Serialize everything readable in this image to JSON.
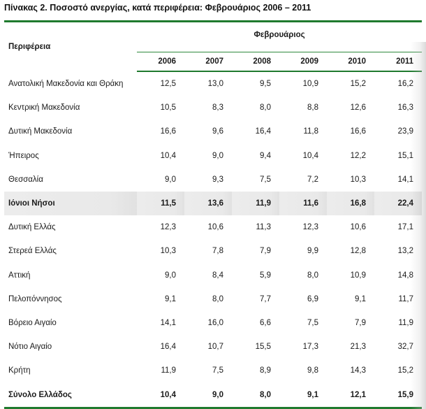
{
  "title": "Πίνακας 2. Ποσοστό ανεργίας, κατά περιφέρεια: Φεβρουάριος 2006 – 2011",
  "header": {
    "region_label": "Περιφέρεια",
    "group_label": "Φεβρουάριος",
    "years": [
      "2006",
      "2007",
      "2008",
      "2009",
      "2010",
      "2011"
    ]
  },
  "rows": [
    {
      "name": "Ανατολική Μακεδονία και Θράκη",
      "values": [
        "12,5",
        "13,0",
        "9,5",
        "10,9",
        "15,2",
        "16,2"
      ]
    },
    {
      "name": "Κεντρική Μακεδονία",
      "values": [
        "10,5",
        "8,3",
        "8,0",
        "8,8",
        "12,6",
        "16,3"
      ]
    },
    {
      "name": "Δυτική Μακεδονία",
      "values": [
        "16,6",
        "9,6",
        "16,4",
        "11,8",
        "16,6",
        "23,9"
      ]
    },
    {
      "name": "Ήπειρος",
      "values": [
        "10,4",
        "9,0",
        "9,4",
        "10,4",
        "12,2",
        "15,1"
      ]
    },
    {
      "name": "Θεσσαλία",
      "values": [
        "9,0",
        "9,3",
        "7,5",
        "7,2",
        "10,3",
        "14,1"
      ]
    },
    {
      "name": "Ιόνιοι Νήσοι",
      "values": [
        "11,5",
        "13,6",
        "11,9",
        "11,6",
        "16,8",
        "22,4"
      ],
      "highlight": true
    },
    {
      "name": "Δυτική Ελλάς",
      "values": [
        "12,3",
        "10,6",
        "11,3",
        "12,3",
        "10,6",
        "17,1"
      ]
    },
    {
      "name": "Στερεά Ελλάς",
      "values": [
        "10,3",
        "7,8",
        "7,9",
        "9,9",
        "12,8",
        "13,2"
      ]
    },
    {
      "name": "Αττική",
      "values": [
        "9,0",
        "8,4",
        "5,9",
        "8,0",
        "10,9",
        "14,8"
      ]
    },
    {
      "name": "Πελοπόννησος",
      "values": [
        "9,1",
        "8,0",
        "7,7",
        "6,9",
        "9,1",
        "11,7"
      ]
    },
    {
      "name": "Βόρειο Αιγαίο",
      "values": [
        "14,1",
        "16,0",
        "6,6",
        "7,5",
        "7,9",
        "11,9"
      ]
    },
    {
      "name": "Νότιο Αιγαίο",
      "values": [
        "16,4",
        "10,7",
        "15,5",
        "17,3",
        "21,3",
        "32,7"
      ]
    },
    {
      "name": "Κρήτη",
      "values": [
        "11,9",
        "7,5",
        "8,9",
        "9,8",
        "14,3",
        "15,2"
      ]
    }
  ],
  "total": {
    "name": "Σύνολο Ελλάδος",
    "values": [
      "10,4",
      "9,0",
      "8,0",
      "9,1",
      "12,1",
      "15,9"
    ]
  },
  "colors": {
    "rule": "#1f7a2e",
    "highlight_row": "#ebebeb"
  }
}
